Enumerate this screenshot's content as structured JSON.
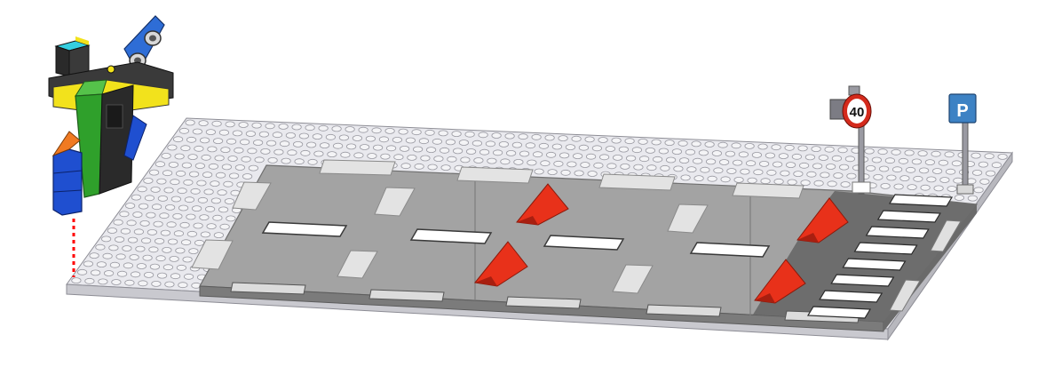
{
  "scene": {
    "description_label": "",
    "signs": {
      "speed_limit": {
        "text": "40",
        "ring_color": "#d42a1c",
        "face_color": "#ffffff"
      },
      "parking": {
        "text": "P",
        "face_color": "#3d82c4"
      }
    },
    "colors": {
      "baseplate": "#e9e9ee",
      "stud": "#f4f4f6",
      "stud_edge": "#9a9aa2",
      "road": "#a3a3a3",
      "road_dark": "#6d6d6d",
      "stripe": "#ffffff",
      "speed_bump": "#e8311a",
      "robot_green": "#2fa02b",
      "robot_blue": "#1f4fd0",
      "robot_yellow": "#f2e21c",
      "robot_cyan": "#35cfe0",
      "robot_dark": "#2a2a2a",
      "sensor_board": "#2e6dd6",
      "trajectory": "#ff0000"
    },
    "icons": [
      "robot-icon",
      "ultrasonic-sensor-icon",
      "speed-limit-sign-icon",
      "parking-sign-icon",
      "speed-bump-icon"
    ]
  }
}
